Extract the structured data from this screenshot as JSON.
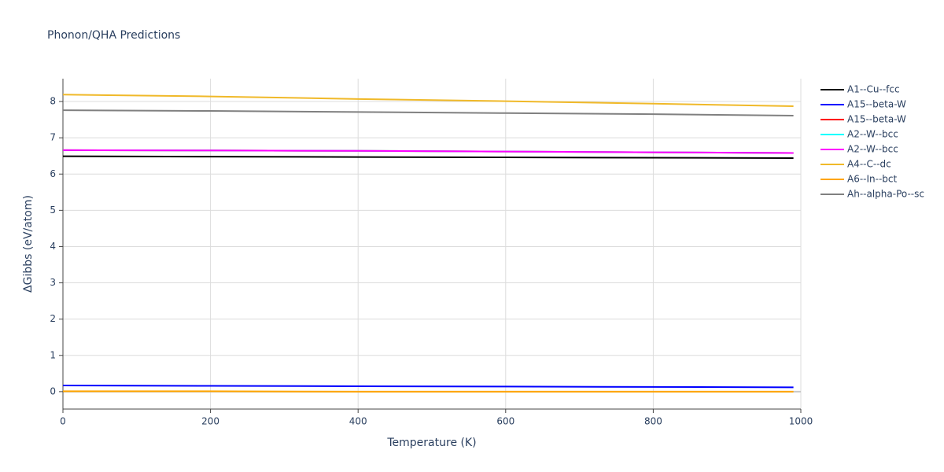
{
  "chart_data": {
    "type": "line",
    "title": "Phonon/QHA Predictions",
    "x_label": "Temperature (K)",
    "y_label": "ΔGibbs (eV/atom)",
    "x": [
      0,
      200,
      400,
      600,
      800,
      990
    ],
    "series": [
      {
        "name": "A1--Cu--fcc",
        "color": "#000000",
        "values": [
          6.49,
          6.48,
          6.47,
          6.46,
          6.45,
          6.44
        ]
      },
      {
        "name": "A15--beta-W",
        "color": "#0000ff",
        "values": [
          0.17,
          0.16,
          0.15,
          0.14,
          0.13,
          0.12
        ]
      },
      {
        "name": "A15--beta-W",
        "color": "#ff0000",
        "values": [
          6.66,
          6.65,
          6.64,
          6.62,
          6.6,
          6.58
        ]
      },
      {
        "name": "A2--W--bcc",
        "color": "#00ffff",
        "values": [
          6.66,
          6.65,
          6.64,
          6.62,
          6.6,
          6.58
        ]
      },
      {
        "name": "A2--W--bcc",
        "color": "#ff00ff",
        "values": [
          6.66,
          6.65,
          6.64,
          6.62,
          6.6,
          6.58
        ]
      },
      {
        "name": "A4--C--dc",
        "color": "#f0b929",
        "values": [
          8.19,
          8.14,
          8.07,
          8.01,
          7.94,
          7.87
        ]
      },
      {
        "name": "A6--In--bct",
        "color": "#ffa500",
        "values": [
          0.01,
          0.01,
          0.0,
          0.0,
          0.0,
          0.0
        ]
      },
      {
        "name": "Ah--alpha-Po--sc",
        "color": "#808080",
        "values": [
          7.76,
          7.74,
          7.71,
          7.68,
          7.65,
          7.61
        ]
      }
    ],
    "xlim": [
      0,
      1000
    ],
    "xticks": [
      0,
      200,
      400,
      600,
      800,
      1000
    ],
    "ylim": [
      -0.48,
      8.63
    ],
    "yticks": [
      0,
      1,
      2,
      3,
      4,
      5,
      6,
      7,
      8
    ],
    "grid": true,
    "legend": "right"
  }
}
